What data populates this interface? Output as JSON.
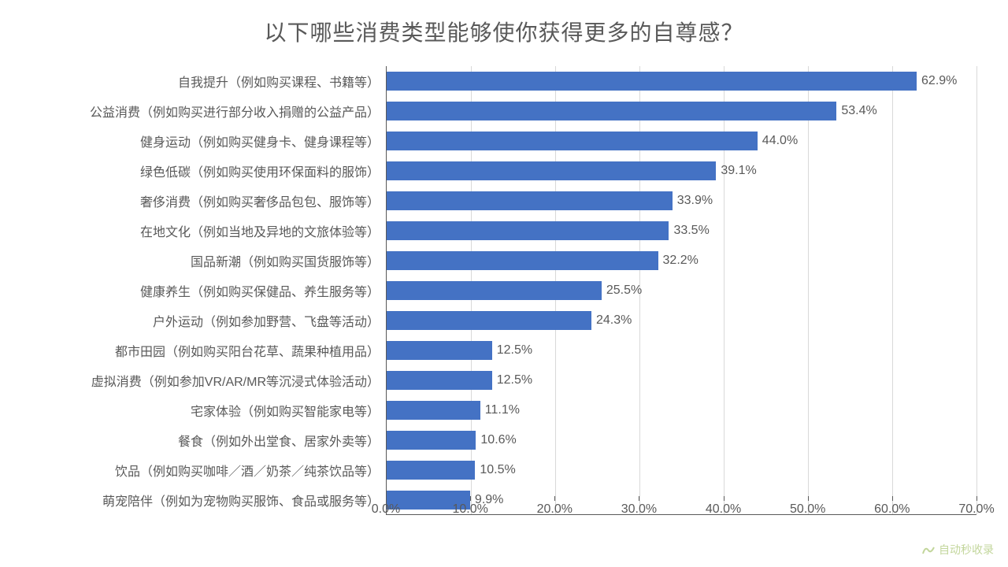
{
  "chart": {
    "type": "bar-horizontal",
    "title": "以下哪些消费类型能够使你获得更多的自尊感？",
    "title_fontsize": 28,
    "title_color": "#595959",
    "background_color": "#ffffff",
    "bar_color": "#4472c4",
    "grid_color": "#d9d9d9",
    "axis_color": "#595959",
    "label_color": "#595959",
    "label_fontsize": 16,
    "value_suffix": "%",
    "bar_height_ratio": 0.62,
    "xaxis": {
      "min": 0.0,
      "max": 70.0,
      "tick_step": 10.0,
      "tick_format_decimals": 1,
      "tick_suffix": "%"
    },
    "categories": [
      {
        "label": "自我提升（例如购买课程、书籍等）",
        "value": 62.9
      },
      {
        "label": "公益消费（例如购买进行部分收入捐赠的公益产品）",
        "value": 53.4
      },
      {
        "label": "健身运动（例如购买健身卡、健身课程等）",
        "value": 44.0
      },
      {
        "label": "绿色低碳（例如购买使用环保面料的服饰）",
        "value": 39.1
      },
      {
        "label": "奢侈消费（例如购买奢侈品包包、服饰等）",
        "value": 33.9
      },
      {
        "label": "在地文化（例如当地及异地的文旅体验等）",
        "value": 33.5
      },
      {
        "label": "国品新潮（例如购买国货服饰等）",
        "value": 32.2
      },
      {
        "label": "健康养生（例如购买保健品、养生服务等）",
        "value": 25.5
      },
      {
        "label": "户外运动（例如参加野营、飞盘等活动）",
        "value": 24.3
      },
      {
        "label": "都市田园（例如购买阳台花草、蔬果种植用品）",
        "value": 12.5
      },
      {
        "label": "虚拟消费（例如参加VR/AR/MR等沉浸式体验活动）",
        "value": 12.5
      },
      {
        "label": "宅家体验（例如购买智能家电等）",
        "value": 11.1
      },
      {
        "label": "餐食（例如外出堂食、居家外卖等）",
        "value": 10.6
      },
      {
        "label": "饮品（例如购买咖啡／酒／奶茶／纯茶饮品等）",
        "value": 10.5
      },
      {
        "label": "萌宠陪伴（例如为宠物购买服饰、食品或服务等）",
        "value": 9.9
      }
    ]
  },
  "watermark": {
    "text": "自动秒收录",
    "subtext": "",
    "color": "#9bbb59"
  }
}
